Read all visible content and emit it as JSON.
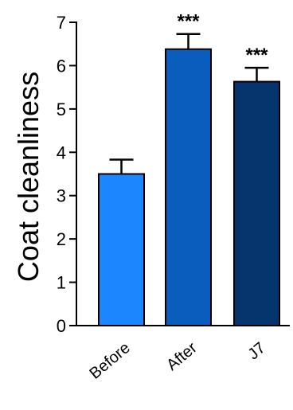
{
  "chart_data": {
    "type": "bar",
    "categories": [
      "Before",
      "After",
      "J7"
    ],
    "values": [
      3.5,
      6.38,
      5.63
    ],
    "errors": [
      0.33,
      0.35,
      0.32
    ],
    "significance": [
      "",
      "***",
      "***"
    ],
    "colors": [
      "#1b86ff",
      "#0a5cbd",
      "#06356e"
    ],
    "ylabel": "Coat cleanliness",
    "ylim": [
      0,
      7
    ],
    "yticks": [
      0,
      1,
      2,
      3,
      4,
      5,
      6,
      7
    ],
    "grid": false
  }
}
